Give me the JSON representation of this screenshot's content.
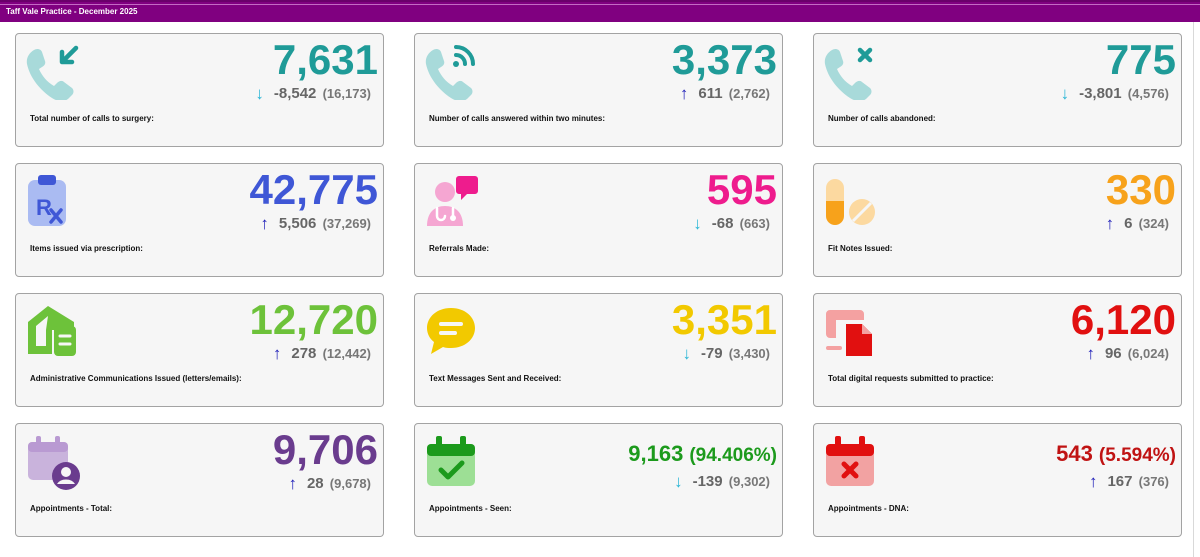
{
  "header": {
    "title": "Taff Vale Practice - December 2025"
  },
  "colors": {
    "header_bg": "#800080",
    "teal": "#1f9b98",
    "blue": "#3f57d6",
    "pink": "#ee1c8d",
    "orange": "#f7a21b",
    "green": "#6dc23a",
    "yellow": "#f2c900",
    "red": "#e11010",
    "purple": "#6a3c8e",
    "dark_green": "#1c9a1c",
    "dark_red": "#c01313",
    "arrow_down": "#2bb6d6",
    "arrow_up": "#1f1fb8"
  },
  "cards": [
    {
      "icon": "phone-incoming-icon",
      "value": "7,631",
      "direction": "down",
      "change": "-8,542",
      "previous": "(16,173)",
      "label": "Total number of calls to surgery:"
    },
    {
      "icon": "phone-answered-icon",
      "value": "3,373",
      "direction": "up",
      "change": "611",
      "previous": "(2,762)",
      "label": "Number of calls answered within two minutes:"
    },
    {
      "icon": "phone-abandoned-icon",
      "value": "775",
      "direction": "down",
      "change": "-3,801",
      "previous": "(4,576)",
      "label": "Number of calls abandoned:"
    },
    {
      "icon": "prescription-icon",
      "value": "42,775",
      "direction": "up",
      "change": "5,506",
      "previous": "(37,269)",
      "label": "Items issued via prescription:"
    },
    {
      "icon": "referral-icon",
      "value": "595",
      "direction": "down",
      "change": "-68",
      "previous": "(663)",
      "label": "Referrals Made:"
    },
    {
      "icon": "pills-icon",
      "value": "330",
      "direction": "up",
      "change": "6",
      "previous": "(324)",
      "label": "Fit Notes Issued:"
    },
    {
      "icon": "house-letter-icon",
      "value": "12,720",
      "direction": "up",
      "change": "278",
      "previous": "(12,442)",
      "label": "Administrative Communications Issued (letters/emails):"
    },
    {
      "icon": "speech-bubble-icon",
      "value": "3,351",
      "direction": "down",
      "change": "-79",
      "previous": "(3,430)",
      "label": "Text Messages Sent and Received:"
    },
    {
      "icon": "digital-request-icon",
      "value": "6,120",
      "direction": "up",
      "change": "96",
      "previous": "(6,024)",
      "label": "Total digital requests submitted to practice:"
    },
    {
      "icon": "calendar-person-icon",
      "value": "9,706",
      "direction": "up",
      "change": "28",
      "previous": "(9,678)",
      "label": "Appointments - Total:"
    },
    {
      "icon": "calendar-check-icon",
      "value": "9,163",
      "percent": "(94.406%)",
      "direction": "down",
      "change": "-139",
      "previous": "(9,302)",
      "label": "Appointments - Seen:"
    },
    {
      "icon": "calendar-cross-icon",
      "value": "543",
      "percent": "(5.594%)",
      "direction": "up",
      "change": "167",
      "previous": "(376)",
      "label": "Appointments - DNA:"
    }
  ]
}
